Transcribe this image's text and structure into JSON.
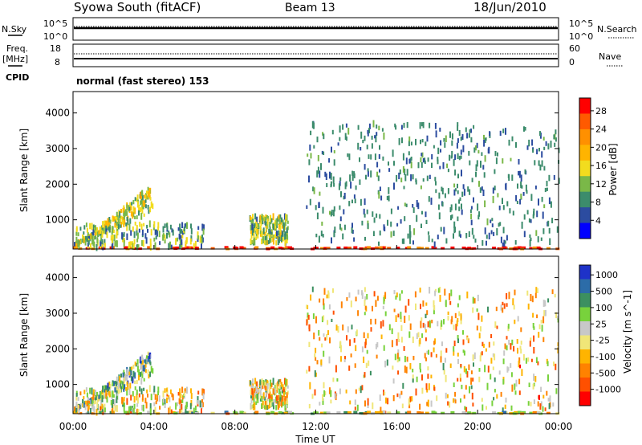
{
  "header": {
    "station": "Syowa South (fitACF)",
    "beam": "Beam 13",
    "date": "18/Jun/2010"
  },
  "nsky_panel": {
    "left_label": "N.Sky",
    "right_label": "N.Search",
    "left_ticks": [
      "10^5",
      "10^0"
    ],
    "right_ticks": [
      "10^5",
      "10^0"
    ]
  },
  "freq_panel": {
    "left_label_1": "Freq.",
    "left_label_2": "[MHz]",
    "right_label": "Nave",
    "left_ticks": [
      "18",
      "8"
    ],
    "right_ticks": [
      "60",
      "0"
    ]
  },
  "cpid": {
    "label": "CPID",
    "mode_text": "normal (fast stereo) 153"
  },
  "x_axis": {
    "label": "Time UT",
    "ticks": [
      "00:00",
      "04:00",
      "08:00",
      "12:00",
      "16:00",
      "20:00",
      "00:00"
    ]
  },
  "y_axis": {
    "label": "Slant Range [km]",
    "ticks": [
      "4000",
      "3000",
      "2000",
      "1000"
    ]
  },
  "power_colorbar": {
    "label": "Power [dB]",
    "ticks": [
      "28",
      "24",
      "20",
      "16",
      "12",
      "8",
      "4"
    ],
    "colors": [
      "#ff0000",
      "#ff5a00",
      "#ff9000",
      "#ffb400",
      "#f2dc1e",
      "#7ab848",
      "#3c8c6c",
      "#2c4ca0",
      "#0000ff"
    ]
  },
  "velocity_colorbar": {
    "label": "Velocity [m s^-1]",
    "ticks": [
      "1000",
      "500",
      "100",
      "25",
      "-25",
      "-100",
      "-500",
      "-1000"
    ],
    "colors": [
      "#1e32c8",
      "#2c6ca8",
      "#3c9060",
      "#78d23c",
      "#c8c8c8",
      "#f0e678",
      "#ffb400",
      "#ff8200",
      "#ff5000",
      "#ff0000"
    ]
  },
  "chart_data": [
    {
      "type": "heatmap",
      "title": "Power [dB]",
      "xlabel": "Time UT",
      "ylabel": "Slant Range [km]",
      "xlim": [
        0,
        24
      ],
      "ylim": [
        180,
        4600
      ],
      "zlim": [
        0,
        30
      ],
      "x_ticks": [
        "00:00",
        "04:00",
        "08:00",
        "12:00",
        "16:00",
        "20:00",
        "00:00"
      ],
      "y_ticks": [
        1000,
        2000,
        3000,
        4000
      ],
      "regions": [
        {
          "name": "ground scatter band",
          "x": [
            0,
            24
          ],
          "range_km": [
            180,
            230
          ],
          "value": 28
        },
        {
          "name": "early arc",
          "x": [
            0.1,
            3.9
          ],
          "range_km": [
            300,
            2000
          ],
          "value": 14
        },
        {
          "name": "near-range echoes",
          "x": [
            0,
            6.5
          ],
          "range_km": [
            200,
            900
          ],
          "value": 10
        },
        {
          "name": "mid-day patch",
          "x": [
            8.7,
            10.6
          ],
          "range_km": [
            350,
            1100
          ],
          "value": 12
        },
        {
          "name": "afternoon scatter",
          "x": [
            11.5,
            24
          ],
          "range_km": [
            300,
            3700
          ],
          "value": 6
        }
      ]
    },
    {
      "type": "heatmap",
      "title": "Velocity [m s^-1]",
      "xlabel": "Time UT",
      "ylabel": "Slant Range [km]",
      "xlim": [
        0,
        24
      ],
      "ylim": [
        180,
        4600
      ],
      "zlim": [
        -1000,
        1000
      ],
      "x_ticks": [
        "00:00",
        "04:00",
        "08:00",
        "12:00",
        "16:00",
        "20:00",
        "00:00"
      ],
      "y_ticks": [
        1000,
        2000,
        3000,
        4000
      ],
      "regions": [
        {
          "name": "ground scatter band",
          "x": [
            0,
            24
          ],
          "range_km": [
            180,
            230
          ],
          "value": 0
        },
        {
          "name": "early arc",
          "x": [
            0.1,
            3.9
          ],
          "range_km": [
            300,
            2000
          ],
          "value": 300
        },
        {
          "name": "near-range echoes",
          "x": [
            0,
            6.5
          ],
          "range_km": [
            200,
            900
          ],
          "value": -60
        },
        {
          "name": "mid-day patch",
          "x": [
            8.7,
            10.6
          ],
          "range_km": [
            350,
            1100
          ],
          "value": -80
        },
        {
          "name": "afternoon scatter",
          "x": [
            11.5,
            24
          ],
          "range_km": [
            300,
            3700
          ],
          "value": -200
        }
      ]
    }
  ]
}
